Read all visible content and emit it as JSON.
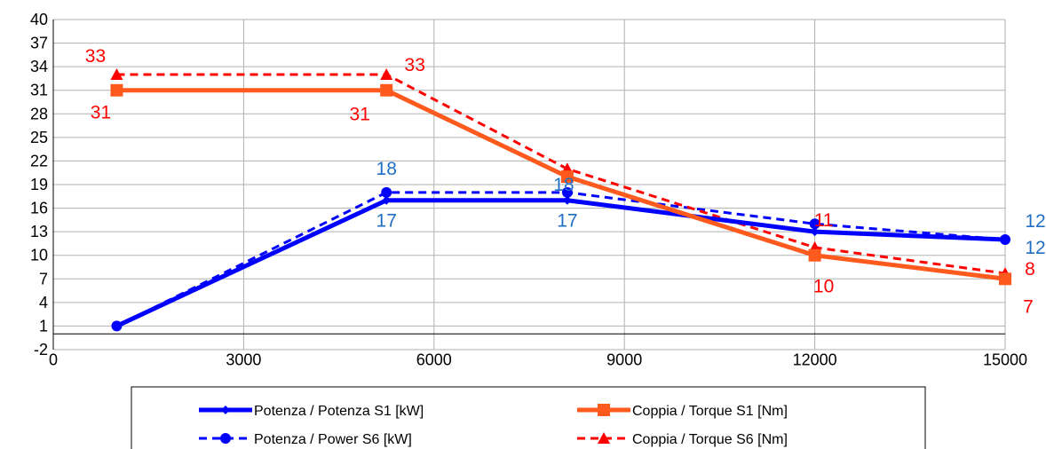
{
  "chart_data": {
    "type": "line",
    "title": "",
    "xlabel": "",
    "ylabel": "",
    "xlim": [
      0,
      15000
    ],
    "ylim": [
      -2,
      40
    ],
    "x_ticks": [
      "0",
      "3000",
      "6000",
      "9000",
      "12000",
      "15000"
    ],
    "y_ticks": [
      "-2",
      "1",
      "4",
      "7",
      "10",
      "13",
      "16",
      "19",
      "22",
      "25",
      "28",
      "31",
      "34",
      "37",
      "40"
    ],
    "grid": true,
    "legend_position": "bottom",
    "series": [
      {
        "name": "Potenza / Potenza S1 [kW]",
        "color": "#0000ff",
        "style": "solid",
        "marker": "diamond",
        "x": [
          1000,
          5250,
          8100,
          12000,
          15000
        ],
        "y": [
          1,
          17,
          17,
          13,
          12
        ],
        "labels": [
          "",
          "17",
          "17",
          "",
          "12"
        ]
      },
      {
        "name": "Potenza / Power S6 [kW]",
        "color": "#0000ff",
        "style": "dashed",
        "marker": "circle",
        "x": [
          1000,
          5250,
          8100,
          12000,
          15000
        ],
        "y": [
          1,
          18,
          18,
          14,
          12
        ],
        "labels": [
          "",
          "18",
          "18",
          "",
          "12"
        ]
      },
      {
        "name": "Coppia / Torque S1 [Nm]",
        "color": "#ff5a1e",
        "style": "solid",
        "marker": "square",
        "x": [
          1000,
          5250,
          8100,
          12000,
          15000
        ],
        "y": [
          31,
          31,
          20,
          10,
          7
        ],
        "labels": [
          "31",
          "31",
          "",
          "10",
          "7"
        ]
      },
      {
        "name": "Coppia / Torque S6  [Nm]",
        "color": "#ff0000",
        "style": "dashed",
        "marker": "triangle",
        "x": [
          1000,
          5250,
          8100,
          12000,
          15000
        ],
        "y": [
          33,
          33,
          21,
          11,
          7.7
        ],
        "labels": [
          "33",
          "33",
          "",
          "11",
          "8"
        ]
      }
    ]
  }
}
